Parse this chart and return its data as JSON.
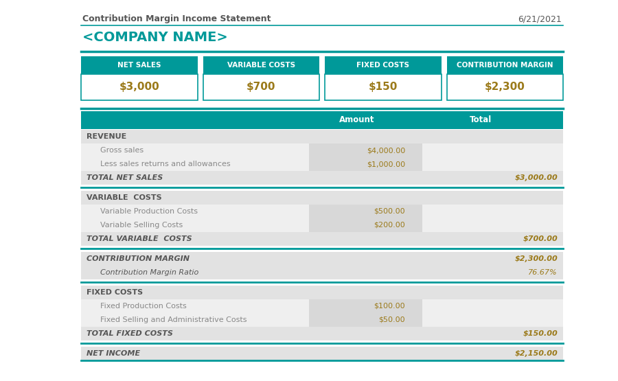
{
  "title": "Contribution Margin Income Statement",
  "date": "6/21/2021",
  "company": "<COMPANY NAME>",
  "teal": "#009999",
  "light_gray": "#e2e2e2",
  "item_bg": "#efefef",
  "white": "#ffffff",
  "text_dark": "#555555",
  "text_label": "#888888",
  "value_color": "#9B7A1A",
  "title_color": "#555555",
  "company_color": "#009999",
  "summary_boxes": [
    {
      "label": "NET SALES",
      "value": "$3,000"
    },
    {
      "label": "VARIABLE COSTS",
      "value": "$700"
    },
    {
      "label": "FIXED COSTS",
      "value": "$150"
    },
    {
      "label": "CONTRIBUTION MARGIN",
      "value": "$2,300"
    }
  ],
  "table_rows": [
    {
      "label": "REVENUE",
      "amount": "",
      "total": "",
      "type": "section_header"
    },
    {
      "label": "Gross sales",
      "amount": "$4,000.00",
      "total": "",
      "type": "item"
    },
    {
      "label": "Less sales returns and allowances",
      "amount": "$1,000.00",
      "total": "",
      "type": "item"
    },
    {
      "label": "TOTAL NET SALES",
      "amount": "",
      "total": "$3,000.00",
      "type": "total"
    },
    {
      "label": "",
      "amount": "",
      "total": "",
      "type": "divider"
    },
    {
      "label": "VARIABLE  COSTS",
      "amount": "",
      "total": "",
      "type": "section_header"
    },
    {
      "label": "Variable Production Costs",
      "amount": "$500.00",
      "total": "",
      "type": "item"
    },
    {
      "label": "Variable Selling Costs",
      "amount": "$200.00",
      "total": "",
      "type": "item"
    },
    {
      "label": "TOTAL VARIABLE  COSTS",
      "amount": "",
      "total": "$700.00",
      "type": "total"
    },
    {
      "label": "",
      "amount": "",
      "total": "",
      "type": "divider"
    },
    {
      "label": "CONTRIBUTION MARGIN",
      "amount": "",
      "total": "$2,300.00",
      "type": "italic_total"
    },
    {
      "label": "Contribution Margin Ratio",
      "amount": "",
      "total": "76.67%",
      "type": "italic_item"
    },
    {
      "label": "",
      "amount": "",
      "total": "",
      "type": "divider"
    },
    {
      "label": "FIXED COSTS",
      "amount": "",
      "total": "",
      "type": "section_header"
    },
    {
      "label": "Fixed Production Costs",
      "amount": "$100.00",
      "total": "",
      "type": "item"
    },
    {
      "label": "Fixed Selling and Administrative Costs",
      "amount": "$50.00",
      "total": "",
      "type": "item"
    },
    {
      "label": "TOTAL FIXED COSTS",
      "amount": "",
      "total": "$150.00",
      "type": "total"
    },
    {
      "label": "",
      "amount": "",
      "total": "",
      "type": "divider"
    },
    {
      "label": "NET INCOME",
      "amount": "",
      "total": "$2,150.00",
      "type": "italic_total"
    }
  ]
}
